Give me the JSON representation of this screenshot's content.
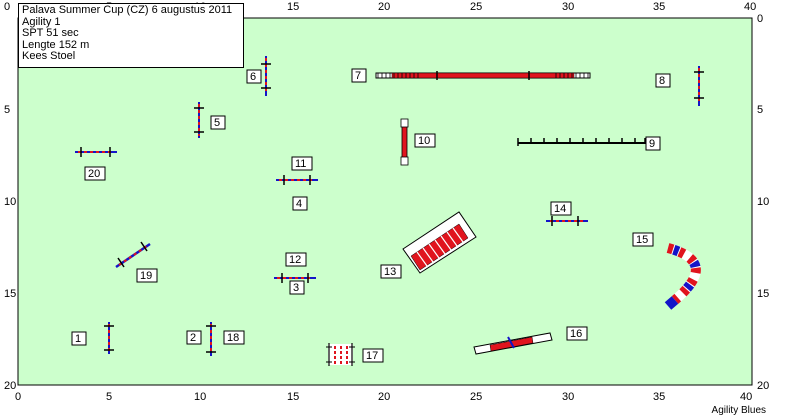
{
  "info": {
    "lines": [
      "Palava Summer Cup (CZ) 6 augustus 2011",
      "Agility 1",
      "SPT 51 sec",
      "Lengte 152 m",
      "Kees Stoel"
    ]
  },
  "axes": {
    "x_top": [
      "0",
      "5",
      "10",
      "15",
      "20",
      "25",
      "30",
      "35",
      "40"
    ],
    "x_bottom": [
      "0",
      "5",
      "10",
      "15",
      "20",
      "25",
      "30",
      "35",
      "40"
    ],
    "y_left": [
      "0",
      "5",
      "10",
      "15",
      "20"
    ],
    "y_right": [
      "0",
      "5",
      "10",
      "15",
      "20"
    ]
  },
  "brand": "Agility Blues",
  "colors": {
    "field": "#ccffcc",
    "red": "#e0141e",
    "blue": "#1414c8",
    "dark": "#000000"
  },
  "obstacles": [
    {
      "number": "1",
      "type": "jump"
    },
    {
      "number": "2",
      "type": "jump"
    },
    {
      "number": "3",
      "type": "jump"
    },
    {
      "number": "4",
      "type": "jump"
    },
    {
      "number": "5",
      "type": "jump"
    },
    {
      "number": "6",
      "type": "jump"
    },
    {
      "number": "7",
      "type": "dog-walk"
    },
    {
      "number": "8",
      "type": "jump"
    },
    {
      "number": "9",
      "type": "weave-poles"
    },
    {
      "number": "10",
      "type": "table"
    },
    {
      "number": "11",
      "type": "jump"
    },
    {
      "number": "12",
      "type": "jump"
    },
    {
      "number": "13",
      "type": "a-frame"
    },
    {
      "number": "14",
      "type": "jump"
    },
    {
      "number": "15",
      "type": "tunnel"
    },
    {
      "number": "16",
      "type": "see-saw"
    },
    {
      "number": "17",
      "type": "wall"
    },
    {
      "number": "18",
      "type": "jump"
    },
    {
      "number": "19",
      "type": "jump"
    },
    {
      "number": "20",
      "type": "jump"
    }
  ]
}
